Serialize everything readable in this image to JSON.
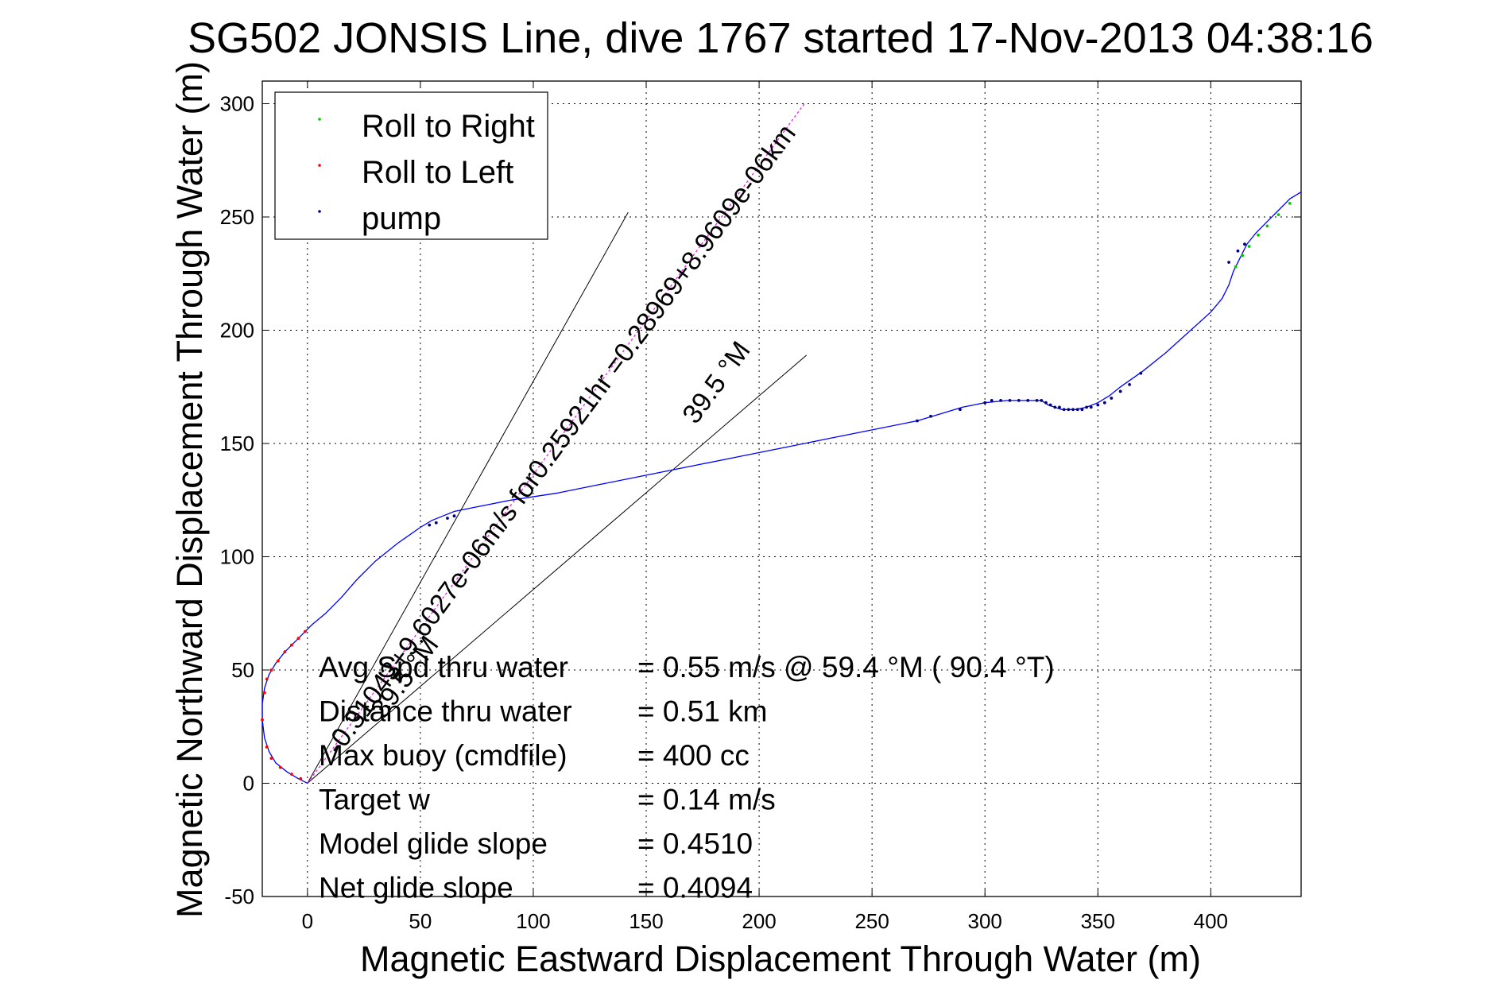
{
  "chart_data": {
    "type": "line",
    "title": "SG502 JONSIS Line, dive 1767 started 17-Nov-2013 04:38:16",
    "xlabel": "Magnetic Eastward Displacement Through Water (m)",
    "ylabel": "Magnetic Northward Displacement Through Water (m)",
    "xlim": [
      -20,
      440
    ],
    "ylim": [
      -50,
      310
    ],
    "xticks": [
      0,
      50,
      100,
      150,
      200,
      250,
      300,
      350,
      400
    ],
    "yticks": [
      -50,
      0,
      50,
      100,
      150,
      200,
      250,
      300
    ],
    "grid": true,
    "legend_position": "top-left",
    "colors": {
      "track": "#0000ff",
      "roll_right": "#00cc00",
      "roll_left": "#ff0000",
      "pump": "#000080",
      "current_line": "#ff00ff",
      "wedge": "#000000"
    },
    "legend": [
      {
        "label": "Roll to Right",
        "color": "#00cc00"
      },
      {
        "label": "Roll to Left",
        "color": "#ff0000"
      },
      {
        "label": "pump",
        "color": "#000080"
      }
    ],
    "track": {
      "name": "track",
      "x": [
        0,
        -4,
        -9,
        -14,
        -17,
        -19,
        -20,
        -20,
        -19,
        -17,
        -14,
        -10,
        -6,
        -2,
        0,
        2,
        8,
        15,
        22,
        30,
        40,
        50,
        55,
        60,
        65,
        75,
        90,
        110,
        130,
        150,
        170,
        190,
        210,
        230,
        250,
        270,
        280,
        290,
        300,
        310,
        320,
        325,
        328,
        331,
        334,
        337,
        340,
        345,
        350,
        355,
        360,
        370,
        380,
        390,
        400,
        405,
        408,
        410,
        413,
        416,
        420,
        425,
        430,
        435,
        440
      ],
      "y": [
        0,
        2,
        5,
        9,
        14,
        20,
        28,
        35,
        42,
        48,
        53,
        58,
        62,
        66,
        68,
        70,
        75,
        82,
        90,
        98,
        106,
        113,
        116,
        118,
        120,
        122,
        125,
        128,
        132,
        136,
        140,
        144,
        148,
        152,
        156,
        160,
        163,
        166,
        168,
        169,
        169,
        169,
        167,
        166,
        165,
        165,
        165,
        166,
        168,
        171,
        175,
        182,
        190,
        199,
        208,
        214,
        220,
        226,
        232,
        238,
        243,
        248,
        253,
        258,
        261
      ]
    },
    "pump_points": {
      "x": [
        54,
        57,
        62,
        65,
        270,
        276,
        289,
        300,
        303,
        307,
        311,
        315,
        319,
        323,
        325,
        327,
        329,
        331,
        333,
        335,
        337,
        339,
        341,
        343,
        345,
        347,
        350,
        353,
        356,
        360,
        364,
        369,
        408,
        412,
        415
      ],
      "y": [
        114,
        115,
        117,
        118,
        160,
        162,
        165,
        168,
        169,
        169,
        169,
        169,
        169,
        169,
        169,
        168,
        167,
        166,
        166,
        165,
        165,
        165,
        165,
        165,
        166,
        166,
        167,
        168,
        170,
        173,
        176,
        181,
        230,
        235,
        238
      ]
    },
    "roll_right_points": {
      "x": [
        411,
        414,
        417,
        421,
        425,
        430,
        435
      ],
      "y": [
        228,
        233,
        237,
        242,
        246,
        251,
        256
      ]
    },
    "roll_left_points": {
      "x": [
        -3,
        -7,
        -12,
        -16,
        -18,
        -20,
        -19,
        -18,
        -16,
        -13,
        -10,
        -7,
        -4,
        -1
      ],
      "y": [
        2,
        4,
        7,
        11,
        16,
        28,
        40,
        46,
        50,
        54,
        58,
        61,
        64,
        67
      ]
    },
    "current_line": {
      "x": [
        0,
        220
      ],
      "y": [
        0,
        300
      ]
    },
    "wedge_lines": [
      {
        "x": [
          0,
          142
        ],
        "y": [
          0,
          252
        ]
      },
      {
        "x": [
          0,
          221
        ],
        "y": [
          0,
          189
        ]
      }
    ],
    "annotations": [
      {
        "text": "-0.31043+9.6027e-06m/s for0.25921hr =0.28969+8.9609e-06km",
        "x": 14,
        "y": 12,
        "angle": 53.7
      },
      {
        "text": "39.5 °M",
        "x": 172,
        "y": 158,
        "angle": 53.7
      },
      {
        "text": "39.5 °M",
        "x": 34,
        "y": 28,
        "angle": 53.7
      }
    ],
    "stats": [
      {
        "label": "Avg Spd thru water",
        "value": "=  0.55 m/s @  59.4 °M ( 90.4 °T)"
      },
      {
        "label": "Distance thru water",
        "value": "=  0.51 km"
      },
      {
        "label": "Max buoy (cmdfile)",
        "value": "= 400 cc"
      },
      {
        "label": "Target w",
        "value": "= 0.14 m/s"
      },
      {
        "label": "Model glide slope",
        "value": "= 0.4510"
      },
      {
        "label": "Net glide slope",
        "value": "= 0.4094"
      }
    ]
  }
}
